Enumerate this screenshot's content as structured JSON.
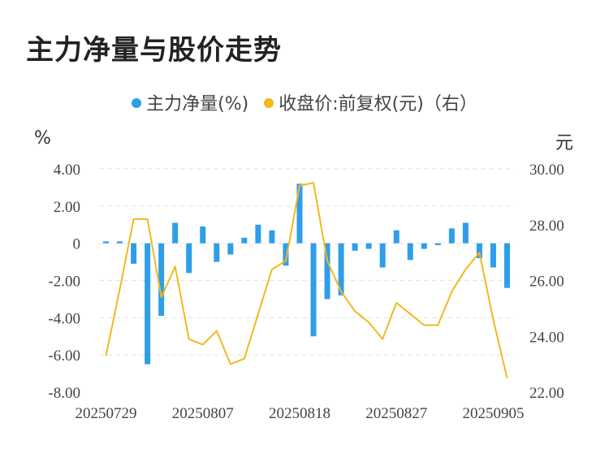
{
  "title": "主力净量与股价走势",
  "legend": {
    "net_label": "主力净量(%)",
    "price_label": "收盘价:前复权(元)（右）",
    "net_color": "#2f9ee8",
    "price_color": "#f2b81d"
  },
  "chart_data": {
    "type": "bar+line",
    "title": "主力净量与股价走势",
    "left_unit": "%",
    "right_unit": "元",
    "x_tick_labels": [
      "20250729",
      "20250807",
      "20250818",
      "20250827",
      "20250905"
    ],
    "x_tick_indices": [
      0,
      7,
      14,
      21,
      28
    ],
    "y_left_ticks": [
      "4.00",
      "2.00",
      "0",
      "-2.00",
      "-4.00",
      "-6.00",
      "-8.00"
    ],
    "y_left_range": [
      -8,
      4
    ],
    "y_right_ticks": [
      "30.00",
      "28.00",
      "26.00",
      "24.00",
      "22.00"
    ],
    "y_right_range": [
      22,
      30
    ],
    "grid": true,
    "legend_position": "top-center",
    "series": [
      {
        "name": "主力净量(%)",
        "type": "bar",
        "axis": "left",
        "values": [
          0.1,
          0.1,
          -1.1,
          -6.5,
          -3.9,
          1.1,
          -1.6,
          0.9,
          -1.0,
          -0.6,
          0.3,
          1.0,
          0.7,
          -1.2,
          3.2,
          -5.0,
          -3.0,
          -2.8,
          -0.4,
          -0.3,
          -1.3,
          0.7,
          -0.9,
          -0.3,
          -0.1,
          0.8,
          1.1,
          -0.8,
          -1.3,
          -2.4
        ]
      },
      {
        "name": "收盘价:前复权(元)（右）",
        "type": "line",
        "axis": "right",
        "values": [
          23.3,
          25.7,
          28.2,
          28.2,
          25.4,
          26.5,
          23.9,
          23.7,
          24.2,
          23.0,
          23.2,
          24.8,
          26.4,
          26.7,
          29.4,
          29.5,
          26.7,
          25.6,
          24.9,
          24.5,
          23.9,
          25.2,
          24.8,
          24.4,
          24.4,
          25.6,
          26.4,
          27.0,
          24.6,
          22.5
        ]
      }
    ]
  }
}
